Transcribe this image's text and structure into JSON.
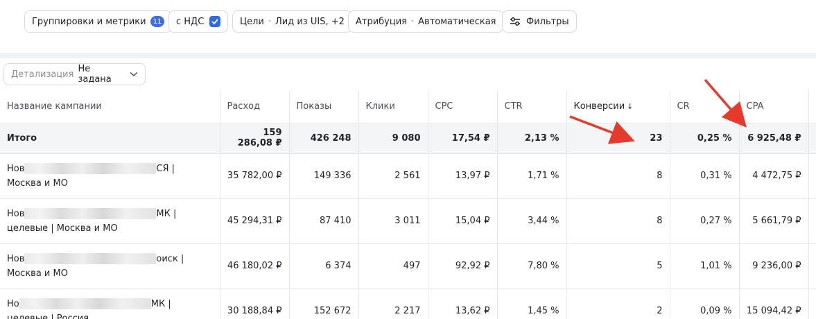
{
  "toolbar": {
    "groupings_label": "Группировки и метрики",
    "groupings_count": "11",
    "vat_label": "с НДС",
    "goals_label": "Цели",
    "goals_value": "Лид из UIS, +2",
    "attribution_label": "Атрибуция",
    "attribution_value": "Автоматическая",
    "filters_label": "Фильтры",
    "sep": "·"
  },
  "detail": {
    "label": "Детализация",
    "value": "Не задана"
  },
  "table": {
    "headers": [
      "Название кампании",
      "Расход",
      "Показы",
      "Клики",
      "CPC",
      "CTR",
      "Конверсии",
      "CR",
      "CPA"
    ],
    "sort_indicator": "↓",
    "total": [
      "Итого",
      "159 286,08 ₽",
      "426 248",
      "9 080",
      "17,54 ₽",
      "2,13 %",
      "23",
      "0,25 %",
      "6 925,48 ₽"
    ],
    "rows": [
      {
        "name_start": "Нов",
        "name_end": "СЯ |",
        "name_line2": "Москва и МО",
        "values": [
          "35 782,00 ₽",
          "149 336",
          "2 561",
          "13,97 ₽",
          "1,71 %",
          "8",
          "0,31 %",
          "4 472,75 ₽"
        ]
      },
      {
        "name_start": "Нов",
        "name_end": "МК |",
        "name_line2": "целевые | Москва и МО",
        "values": [
          "45 294,31 ₽",
          "87 410",
          "3 011",
          "15,04 ₽",
          "3,44 %",
          "8",
          "0,27 %",
          "5 661,79 ₽"
        ]
      },
      {
        "name_start": "Нов",
        "name_end": "оиск |",
        "name_line2": "Москва и МО",
        "values": [
          "46 180,02 ₽",
          "6 374",
          "497",
          "92,92 ₽",
          "7,80 %",
          "5",
          "1,01 %",
          "9 236,00 ₽"
        ]
      },
      {
        "name_start": "Но",
        "name_end": "МК |",
        "name_line2": "целевые | Россия",
        "values": [
          "30 188,84 ₽",
          "152 672",
          "2 217",
          "13,62 ₽",
          "1,45 %",
          "2",
          "0,09 %",
          "15 094,42 ₽"
        ]
      }
    ]
  },
  "colors": {
    "accent": "#2f6ae8",
    "annotation_arrow": "#e53b2c",
    "total_row_bg": "#f4f5f7"
  }
}
